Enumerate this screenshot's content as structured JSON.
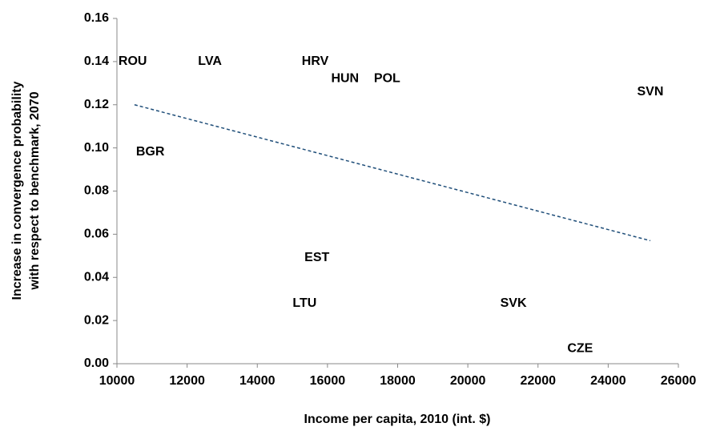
{
  "chart_data": {
    "type": "scatter",
    "xlabel": "Income per capita, 2010 (int. $)",
    "ylabel": [
      "Increase in convergence probability",
      "with respect to benchmark, 2070"
    ],
    "labels": [
      "ROU",
      "LVA",
      "HRV",
      "HUN",
      "POL",
      "SVN",
      "BGR",
      "EST",
      "LTU",
      "SVK",
      "CZE"
    ],
    "x": [
      10450,
      12650,
      15650,
      16500,
      17700,
      25200,
      10950,
      15700,
      15350,
      21300,
      23200
    ],
    "values": [
      0.14,
      0.14,
      0.14,
      0.132,
      0.132,
      0.126,
      0.098,
      0.049,
      0.028,
      0.028,
      0.007
    ],
    "color": "#000000",
    "trendline": {
      "x": [
        10500,
        25200
      ],
      "values": [
        0.12,
        0.057
      ],
      "color": "#1f4e79",
      "dashed": true
    },
    "xlim": [
      10000,
      26000
    ],
    "xticks": [
      10000,
      12000,
      14000,
      16000,
      18000,
      20000,
      22000,
      24000,
      26000
    ],
    "ylim": [
      0,
      0.16
    ],
    "yticks": [
      {
        "value": 0,
        "label": "0.00"
      },
      {
        "value": 0.02,
        "label": "0.02"
      },
      {
        "value": 0.04,
        "label": "0.04"
      },
      {
        "value": 0.06,
        "label": "0.06"
      },
      {
        "value": 0.08,
        "label": "0.08"
      },
      {
        "value": 0.1,
        "label": "0.10"
      },
      {
        "value": 0.12,
        "label": "0.12"
      },
      {
        "value": 0.14,
        "label": "0.14"
      },
      {
        "value": 0.16,
        "label": "0.16"
      }
    ],
    "grid": false
  }
}
